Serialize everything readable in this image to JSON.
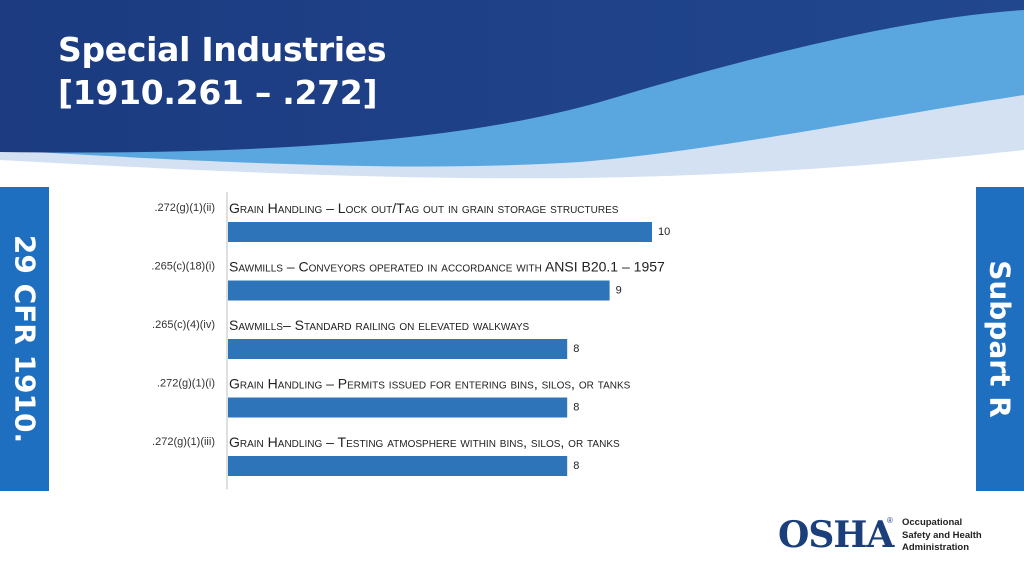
{
  "slide": {
    "title_line1": "Special Industries",
    "title_line2": "[1910.261 – .272]",
    "left_tab": "29 CFR 1910.",
    "right_tab": "Subpart R"
  },
  "logo": {
    "mark": "OSHA",
    "registered": "®",
    "name_lines": [
      "Occupational",
      "Safety and Health",
      "Administration"
    ]
  },
  "colors": {
    "header": "#1e3f86",
    "accent": "#1f6fc1",
    "bar": "#2e74b8"
  },
  "chart_data": {
    "type": "bar",
    "orientation": "horizontal",
    "categories": [
      {
        "ref": ".272(g)(1)(ii)",
        "label": "Grain Handling – Lock out/Tag out in grain storage structures"
      },
      {
        "ref": ".265(c)(18)(i)",
        "label": "Sawmills – Conveyors operated in accordance with ANSI B20.1 – 1957"
      },
      {
        "ref": ".265(c)(4)(iv)",
        "label": "Sawmills– Standard railing on elevated walkways"
      },
      {
        "ref": ".272(g)(1)(i)",
        "label": "Grain Handling – Permits issued for entering bins, silos, or tanks"
      },
      {
        "ref": ".272(g)(1)(iii)",
        "label": "Grain Handling – Testing atmosphere within bins, silos, or tanks"
      }
    ],
    "values": [
      10,
      9,
      8,
      8,
      8
    ],
    "data_labels": true,
    "xlim": [
      0,
      10
    ],
    "grid": false,
    "legend": "none"
  }
}
